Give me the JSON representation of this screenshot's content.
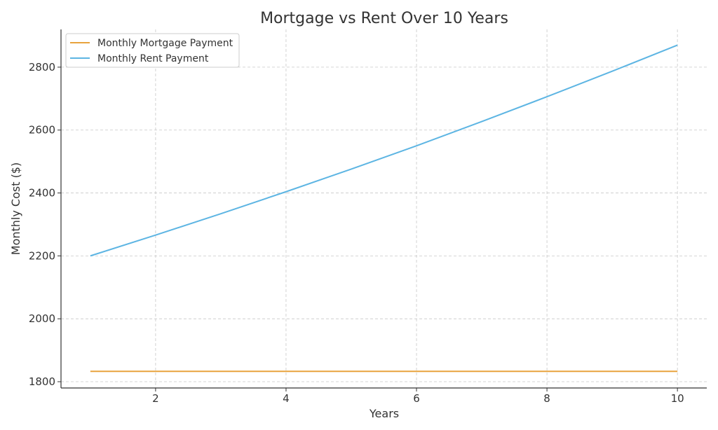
{
  "chart_data": {
    "type": "line",
    "title": "Mortgage vs Rent Over 10 Years",
    "xlabel": "Years",
    "ylabel": "Monthly Cost ($)",
    "xlim": [
      0.55,
      10.45
    ],
    "ylim": [
      1780,
      2920
    ],
    "xticks": [
      2,
      4,
      6,
      8,
      10
    ],
    "yticks": [
      1800,
      2000,
      2200,
      2400,
      2600,
      2800
    ],
    "grid": true,
    "legend_position": "top-left",
    "x": [
      1,
      2,
      3,
      4,
      5,
      6,
      7,
      8,
      9,
      10
    ],
    "series": [
      {
        "name": "Monthly Mortgage Payment",
        "color": "#E8A33D",
        "values": [
          1833,
          1833,
          1833,
          1833,
          1833,
          1833,
          1833,
          1833,
          1833,
          1833
        ]
      },
      {
        "name": "Monthly Rent Payment",
        "color": "#5DB5E3",
        "values": [
          2200,
          2266,
          2334,
          2404,
          2476,
          2550,
          2627,
          2706,
          2787,
          2870
        ]
      }
    ]
  }
}
